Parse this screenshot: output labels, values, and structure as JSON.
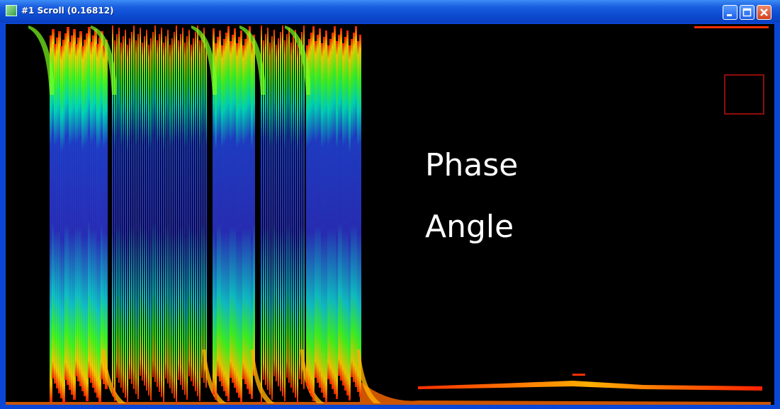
{
  "window": {
    "title": "#1 Scroll (0.16812)"
  },
  "labels": [
    "Phase",
    "Angle"
  ]
}
